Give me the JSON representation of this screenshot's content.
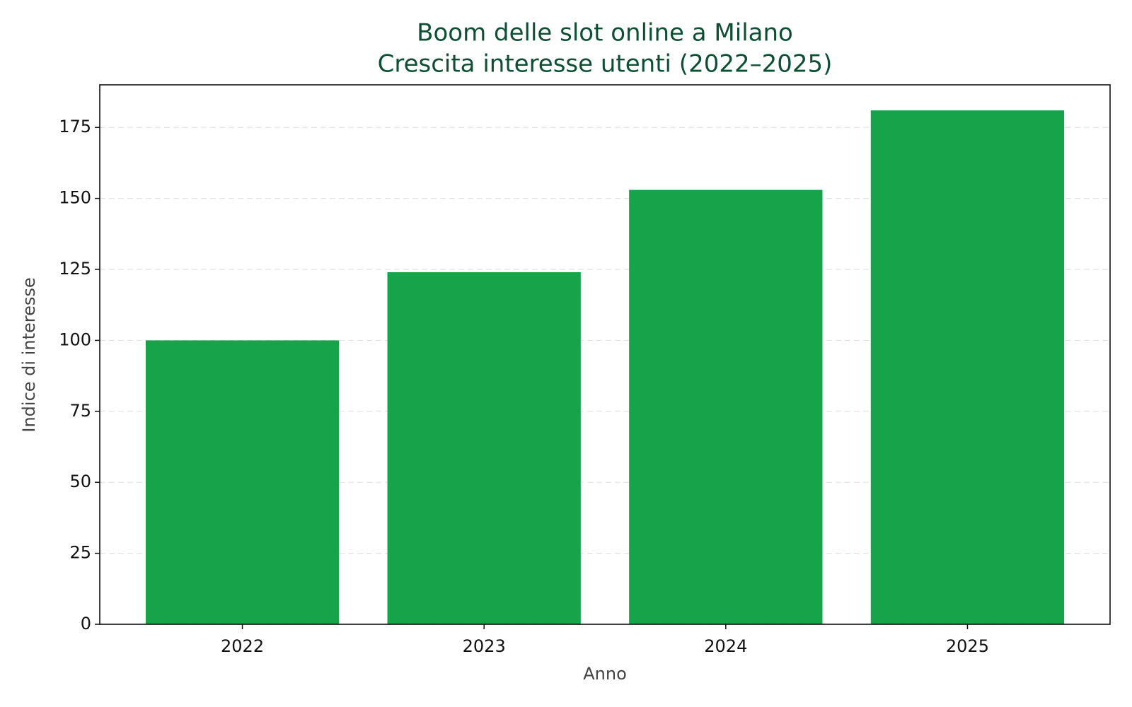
{
  "chart_data": {
    "type": "bar",
    "title": "Boom delle slot online a Milano",
    "subtitle": "Crescita interesse utenti (2022–2025)",
    "x_label": "Anno",
    "y_label": "Indice di interesse",
    "categories": [
      "2022",
      "2023",
      "2024",
      "2025"
    ],
    "values": [
      100,
      124,
      153,
      181
    ],
    "color": "#16a34a",
    "ylim": [
      0,
      190
    ],
    "yticks": [
      0,
      25,
      50,
      75,
      100,
      125,
      150,
      175
    ],
    "grid": true
  }
}
